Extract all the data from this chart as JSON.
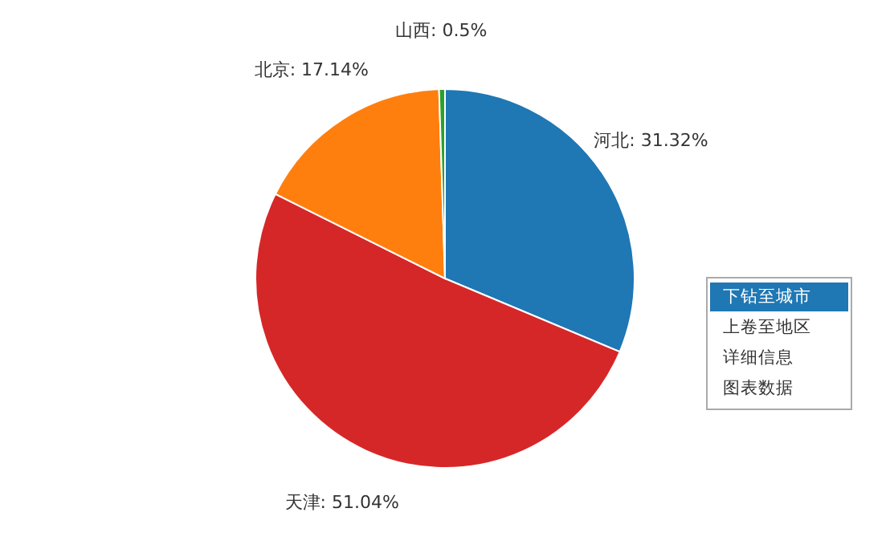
{
  "chart_data": {
    "type": "pie",
    "categories": [
      "河北",
      "天津",
      "北京",
      "山西"
    ],
    "values": [
      31.32,
      51.04,
      17.14,
      0.5
    ],
    "colors": [
      "#1f77b4",
      "#d62728",
      "#ff7f0e",
      "#2ca02c"
    ],
    "value_labels": [
      "31.32%",
      "51.04%",
      "17.14%",
      "0.5%"
    ],
    "annotations": [
      "下钻至城市",
      "上卷至地区",
      "详细信息",
      "图表数据"
    ]
  }
}
